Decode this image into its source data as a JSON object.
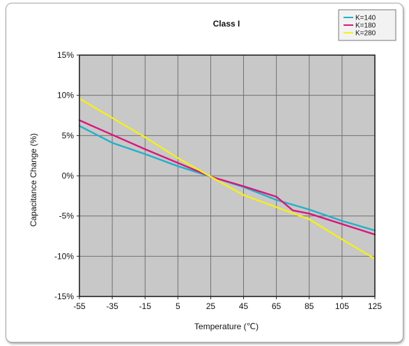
{
  "chart_data": {
    "type": "line",
    "title": "Class I",
    "xlabel": "Temperature (℃)",
    "ylabel": "Capacitance Change (%)",
    "x_ticks": [
      "-55",
      "-35",
      "-15",
      "5",
      "25",
      "45",
      "65",
      "85",
      "105",
      "125"
    ],
    "y_ticks": [
      "15%",
      "10%",
      "5%",
      "0%",
      "-5%",
      "-10%",
      "-15%"
    ],
    "xlim": [
      -55,
      125
    ],
    "ylim": [
      -15,
      15
    ],
    "grid": true,
    "legend_position": "top-right",
    "plot_background": "#c8c8c8",
    "series": [
      {
        "name": "K=140",
        "color": "#23b0c8",
        "points": [
          [
            -55,
            6.2
          ],
          [
            -35,
            4.1
          ],
          [
            -15,
            2.7
          ],
          [
            5,
            1.2
          ],
          [
            25,
            -0.1
          ],
          [
            45,
            -1.4
          ],
          [
            65,
            -3.0
          ],
          [
            85,
            -4.2
          ],
          [
            105,
            -5.6
          ],
          [
            125,
            -6.8
          ]
        ]
      },
      {
        "name": "K=180",
        "color": "#d8187a",
        "points": [
          [
            -55,
            6.9
          ],
          [
            -35,
            5.1
          ],
          [
            -15,
            3.3
          ],
          [
            5,
            1.6
          ],
          [
            25,
            -0.1
          ],
          [
            45,
            -1.3
          ],
          [
            65,
            -2.6
          ],
          [
            75,
            -4.3
          ],
          [
            85,
            -4.7
          ],
          [
            105,
            -6.0
          ],
          [
            125,
            -7.3
          ]
        ]
      },
      {
        "name": "K=280",
        "color": "#f4ef1e",
        "points": [
          [
            -55,
            9.6
          ],
          [
            -35,
            7.2
          ],
          [
            -15,
            4.8
          ],
          [
            5,
            2.2
          ],
          [
            25,
            -0.1
          ],
          [
            45,
            -2.4
          ],
          [
            65,
            -3.9
          ],
          [
            85,
            -5.4
          ],
          [
            105,
            -7.9
          ],
          [
            125,
            -10.3
          ]
        ]
      }
    ]
  }
}
